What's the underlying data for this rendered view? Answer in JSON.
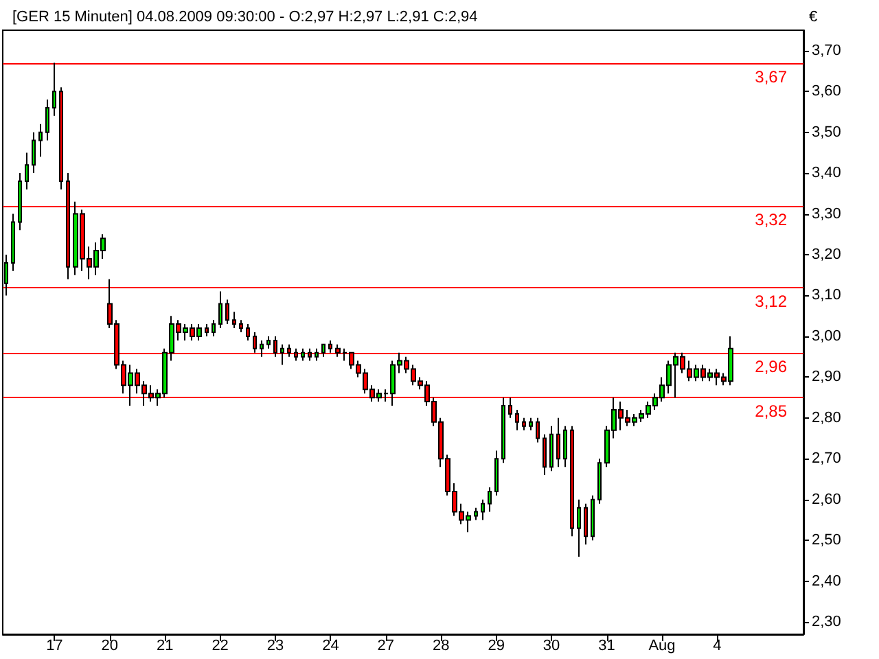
{
  "chart_data": {
    "type": "candlestick",
    "title": "[GER 15 Minuten] 04.08.2009 09:30:00 - O:2,97 H:2,97 L:2,91 C:2,94",
    "ylabel": "€",
    "categories": [
      null,
      null,
      null,
      null,
      null,
      null,
      null,
      "17",
      null,
      null,
      null,
      null,
      null,
      null,
      null,
      "20",
      null,
      null,
      null,
      null,
      null,
      null,
      null,
      "21",
      null,
      null,
      null,
      null,
      null,
      null,
      null,
      "22",
      null,
      null,
      null,
      null,
      null,
      null,
      null,
      "23",
      null,
      null,
      null,
      null,
      null,
      null,
      null,
      "24",
      null,
      null,
      null,
      null,
      null,
      null,
      null,
      "27",
      null,
      null,
      null,
      null,
      null,
      null,
      null,
      "28",
      null,
      null,
      null,
      null,
      null,
      null,
      null,
      "29",
      null,
      null,
      null,
      null,
      null,
      null,
      null,
      "30",
      null,
      null,
      null,
      null,
      null,
      null,
      null,
      "31",
      null,
      null,
      null,
      null,
      null,
      null,
      null,
      "Aug",
      null,
      null,
      null,
      null,
      null,
      null,
      null,
      "4",
      null,
      null,
      null,
      null,
      null,
      null,
      null,
      null,
      null,
      null,
      null,
      null
    ],
    "ohlc": [
      [
        3.13,
        3.2,
        3.1,
        3.18
      ],
      [
        3.18,
        3.3,
        3.16,
        3.28
      ],
      [
        3.28,
        3.4,
        3.26,
        3.38
      ],
      [
        3.38,
        3.45,
        3.36,
        3.42
      ],
      [
        3.42,
        3.5,
        3.4,
        3.48
      ],
      [
        3.48,
        3.52,
        3.44,
        3.5
      ],
      [
        3.5,
        3.58,
        3.48,
        3.56
      ],
      [
        3.56,
        3.67,
        3.54,
        3.6
      ],
      [
        3.6,
        3.61,
        3.36,
        3.38
      ],
      [
        3.38,
        3.4,
        3.14,
        3.17
      ],
      [
        3.17,
        3.33,
        3.15,
        3.3
      ],
      [
        3.3,
        3.31,
        3.16,
        3.19
      ],
      [
        3.19,
        3.22,
        3.14,
        3.17
      ],
      [
        3.17,
        3.23,
        3.15,
        3.21
      ],
      [
        3.21,
        3.25,
        3.19,
        3.24
      ],
      [
        3.08,
        3.14,
        3.02,
        3.03
      ],
      [
        3.03,
        3.04,
        2.92,
        2.93
      ],
      [
        2.93,
        2.94,
        2.86,
        2.88
      ],
      [
        2.88,
        2.93,
        2.83,
        2.91
      ],
      [
        2.91,
        2.92,
        2.86,
        2.88
      ],
      [
        2.88,
        2.89,
        2.83,
        2.86
      ],
      [
        2.86,
        2.88,
        2.84,
        2.85
      ],
      [
        2.85,
        2.87,
        2.83,
        2.86
      ],
      [
        2.86,
        2.97,
        2.85,
        2.96
      ],
      [
        2.96,
        3.05,
        2.94,
        3.03
      ],
      [
        3.03,
        3.04,
        2.99,
        3.01
      ],
      [
        3.01,
        3.03,
        2.99,
        3.02
      ],
      [
        3.02,
        3.03,
        2.99,
        3.0
      ],
      [
        3.0,
        3.03,
        2.99,
        3.02
      ],
      [
        3.02,
        3.03,
        3.0,
        3.01
      ],
      [
        3.01,
        3.04,
        3.0,
        3.03
      ],
      [
        3.03,
        3.11,
        3.02,
        3.08
      ],
      [
        3.08,
        3.09,
        3.03,
        3.04
      ],
      [
        3.04,
        3.06,
        3.02,
        3.03
      ],
      [
        3.03,
        3.04,
        3.01,
        3.02
      ],
      [
        3.02,
        3.03,
        2.99,
        3.0
      ],
      [
        3.0,
        3.01,
        2.96,
        2.97
      ],
      [
        2.97,
        2.99,
        2.95,
        2.98
      ],
      [
        2.98,
        3.0,
        2.97,
        2.99
      ],
      [
        2.99,
        3.0,
        2.95,
        2.96
      ],
      [
        2.96,
        2.98,
        2.93,
        2.97
      ],
      [
        2.97,
        2.98,
        2.95,
        2.96
      ],
      [
        2.96,
        2.97,
        2.94,
        2.95
      ],
      [
        2.95,
        2.97,
        2.94,
        2.96
      ],
      [
        2.96,
        2.97,
        2.94,
        2.95
      ],
      [
        2.95,
        2.97,
        2.94,
        2.96
      ],
      [
        2.96,
        2.98,
        2.95,
        2.98
      ],
      [
        2.98,
        2.99,
        2.96,
        2.97
      ],
      [
        2.97,
        2.98,
        2.95,
        2.96
      ],
      [
        2.96,
        2.97,
        2.94,
        2.96
      ],
      [
        2.96,
        2.96,
        2.92,
        2.93
      ],
      [
        2.93,
        2.94,
        2.9,
        2.91
      ],
      [
        2.91,
        2.92,
        2.86,
        2.87
      ],
      [
        2.87,
        2.88,
        2.84,
        2.85
      ],
      [
        2.85,
        2.87,
        2.84,
        2.86
      ],
      [
        2.86,
        2.87,
        2.84,
        2.86
      ],
      [
        2.86,
        2.94,
        2.83,
        2.93
      ],
      [
        2.93,
        2.96,
        2.91,
        2.94
      ],
      [
        2.94,
        2.95,
        2.91,
        2.92
      ],
      [
        2.92,
        2.93,
        2.88,
        2.89
      ],
      [
        2.89,
        2.9,
        2.87,
        2.88
      ],
      [
        2.88,
        2.89,
        2.83,
        2.84
      ],
      [
        2.84,
        2.85,
        2.78,
        2.79
      ],
      [
        2.79,
        2.8,
        2.68,
        2.7
      ],
      [
        2.7,
        2.71,
        2.61,
        2.62
      ],
      [
        2.62,
        2.64,
        2.56,
        2.57
      ],
      [
        2.57,
        2.59,
        2.54,
        2.55
      ],
      [
        2.55,
        2.57,
        2.52,
        2.56
      ],
      [
        2.56,
        2.58,
        2.55,
        2.57
      ],
      [
        2.57,
        2.6,
        2.55,
        2.59
      ],
      [
        2.59,
        2.63,
        2.57,
        2.62
      ],
      [
        2.62,
        2.72,
        2.61,
        2.7
      ],
      [
        2.7,
        2.85,
        2.69,
        2.83
      ],
      [
        2.83,
        2.85,
        2.8,
        2.81
      ],
      [
        2.81,
        2.82,
        2.77,
        2.79
      ],
      [
        2.79,
        2.8,
        2.77,
        2.78
      ],
      [
        2.78,
        2.8,
        2.77,
        2.79
      ],
      [
        2.79,
        2.8,
        2.74,
        2.75
      ],
      [
        2.75,
        2.76,
        2.66,
        2.68
      ],
      [
        2.68,
        2.78,
        2.67,
        2.76
      ],
      [
        2.76,
        2.8,
        2.68,
        2.7
      ],
      [
        2.7,
        2.78,
        2.68,
        2.77
      ],
      [
        2.77,
        2.78,
        2.51,
        2.53
      ],
      [
        2.53,
        2.6,
        2.46,
        2.58
      ],
      [
        2.58,
        2.59,
        2.49,
        2.51
      ],
      [
        2.51,
        2.61,
        2.5,
        2.6
      ],
      [
        2.6,
        2.7,
        2.59,
        2.69
      ],
      [
        2.69,
        2.78,
        2.68,
        2.77
      ],
      [
        2.77,
        2.85,
        2.75,
        2.82
      ],
      [
        2.82,
        2.84,
        2.77,
        2.8
      ],
      [
        2.8,
        2.82,
        2.78,
        2.79
      ],
      [
        2.79,
        2.81,
        2.78,
        2.8
      ],
      [
        2.8,
        2.82,
        2.79,
        2.81
      ],
      [
        2.81,
        2.84,
        2.8,
        2.83
      ],
      [
        2.83,
        2.86,
        2.82,
        2.85
      ],
      [
        2.85,
        2.9,
        2.84,
        2.88
      ],
      [
        2.88,
        2.94,
        2.86,
        2.93
      ],
      [
        2.93,
        2.96,
        2.85,
        2.95
      ],
      [
        2.95,
        2.96,
        2.91,
        2.92
      ],
      [
        2.92,
        2.94,
        2.89,
        2.9
      ],
      [
        2.9,
        2.93,
        2.89,
        2.92
      ],
      [
        2.92,
        2.93,
        2.89,
        2.9
      ],
      [
        2.9,
        2.92,
        2.89,
        2.91
      ],
      [
        2.91,
        2.92,
        2.88,
        2.9
      ],
      [
        2.9,
        2.91,
        2.88,
        2.89
      ],
      [
        2.89,
        3.0,
        2.88,
        2.97
      ],
      null,
      null,
      null,
      null,
      null,
      null,
      null,
      null,
      null,
      null
    ],
    "ylim": [
      2.27,
      3.75
    ],
    "yticks": [
      {
        "value": 2.3,
        "label": "2,30"
      },
      {
        "value": 2.4,
        "label": "2,40"
      },
      {
        "value": 2.5,
        "label": "2,50"
      },
      {
        "value": 2.6,
        "label": "2,60"
      },
      {
        "value": 2.7,
        "label": "2,70"
      },
      {
        "value": 2.8,
        "label": "2,80"
      },
      {
        "value": 2.9,
        "label": "2,90"
      },
      {
        "value": 3.0,
        "label": "3,00"
      },
      {
        "value": 3.1,
        "label": "3,10"
      },
      {
        "value": 3.2,
        "label": "3,20"
      },
      {
        "value": 3.3,
        "label": "3,30"
      },
      {
        "value": 3.4,
        "label": "3,40"
      },
      {
        "value": 3.5,
        "label": "3,50"
      },
      {
        "value": 3.6,
        "label": "3,60"
      },
      {
        "value": 3.7,
        "label": "3,70"
      }
    ],
    "ref_lines": [
      {
        "axis": "y",
        "value": 3.67,
        "label": "3,67",
        "color": "#ff0000"
      },
      {
        "axis": "y",
        "value": 3.32,
        "label": "3,32",
        "color": "#ff0000"
      },
      {
        "axis": "y",
        "value": 3.12,
        "label": "3,12",
        "color": "#ff0000"
      },
      {
        "axis": "y",
        "value": 2.96,
        "label": "2,96",
        "color": "#ff0000"
      },
      {
        "axis": "y",
        "value": 2.85,
        "label": "2,85",
        "color": "#ff0000"
      }
    ],
    "grid": false
  }
}
